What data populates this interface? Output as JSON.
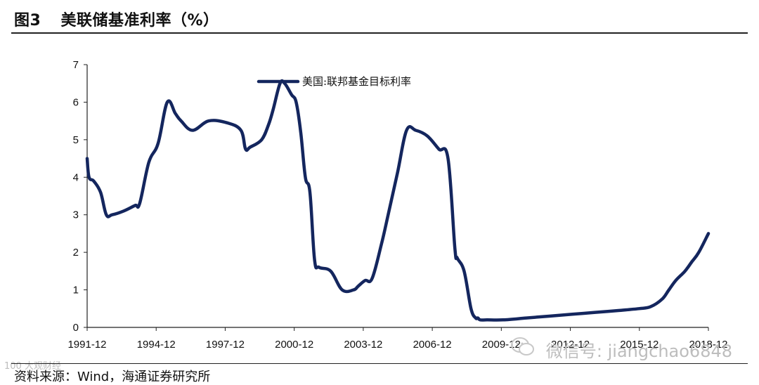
{
  "header": {
    "figure_label": "图3",
    "figure_number": "3",
    "title": "美联储基准利率（%）"
  },
  "chart_data": {
    "type": "line",
    "title": "美联储基准利率（%）",
    "xlabel": "",
    "ylabel": "",
    "ylim": [
      0,
      7
    ],
    "yticks": [
      0,
      1,
      2,
      3,
      4,
      5,
      6,
      7
    ],
    "xlim": [
      1991.917,
      2018.917
    ],
    "xtick_labels": [
      "1991-12",
      "1994-12",
      "1997-12",
      "2000-12",
      "2003-12",
      "2006-12",
      "2009-12",
      "2012-12",
      "2015-12",
      "2018-12"
    ],
    "grid": false,
    "legend_position": "top-center",
    "series": [
      {
        "name": "美国:联邦基金目标利率",
        "color": "#14265e",
        "x": [
          1991.917,
          1992.0,
          1992.2,
          1992.5,
          1992.75,
          1993.0,
          1993.5,
          1994.0,
          1994.2,
          1994.6,
          1995.0,
          1995.4,
          1995.75,
          1996.0,
          1996.5,
          1997.2,
          1998.0,
          1998.6,
          1998.8,
          1999.0,
          1999.5,
          1999.8,
          2000.0,
          2000.3,
          2000.5,
          2000.8,
          2001.0,
          2001.2,
          2001.4,
          2001.6,
          2001.8,
          2002.0,
          2002.5,
          2003.0,
          2003.5,
          2003.7,
          2004.0,
          2004.3,
          2004.7,
          2005.0,
          2005.4,
          2005.8,
          2006.2,
          2006.7,
          2007.2,
          2007.6,
          2007.9,
          2008.0,
          2008.3,
          2008.6,
          2008.8,
          2008.9,
          2009.0,
          2009.3,
          2010.0,
          2011.0,
          2012.0,
          2013.0,
          2014.0,
          2015.0,
          2015.9,
          2016.4,
          2016.9,
          2017.2,
          2017.5,
          2017.9,
          2018.2,
          2018.5,
          2018.917
        ],
        "values": [
          4.5,
          4.0,
          3.9,
          3.6,
          3.0,
          3.0,
          3.1,
          3.25,
          3.3,
          4.4,
          4.9,
          6.0,
          5.7,
          5.5,
          5.25,
          5.5,
          5.45,
          5.25,
          4.75,
          4.8,
          5.0,
          5.4,
          5.8,
          6.5,
          6.5,
          6.2,
          6.0,
          5.2,
          4.0,
          3.6,
          1.8,
          1.6,
          1.5,
          1.0,
          1.0,
          1.1,
          1.25,
          1.3,
          2.2,
          3.0,
          4.1,
          5.25,
          5.25,
          5.1,
          4.75,
          4.5,
          2.1,
          1.85,
          1.5,
          0.5,
          0.25,
          0.25,
          0.2,
          0.2,
          0.2,
          0.25,
          0.3,
          0.35,
          0.4,
          0.45,
          0.5,
          0.55,
          0.75,
          1.0,
          1.25,
          1.5,
          1.75,
          2.0,
          2.5
        ]
      }
    ],
    "legend_marker_value": 6.55
  },
  "source": {
    "text": "资料来源：Wind，海通证券研究所"
  },
  "watermarks": {
    "right": "微信号: jiangchao6848",
    "left": "100 大观财经"
  },
  "colors": {
    "line": "#14265e",
    "axis": "#222222",
    "watermark": "#bdbdbd"
  }
}
